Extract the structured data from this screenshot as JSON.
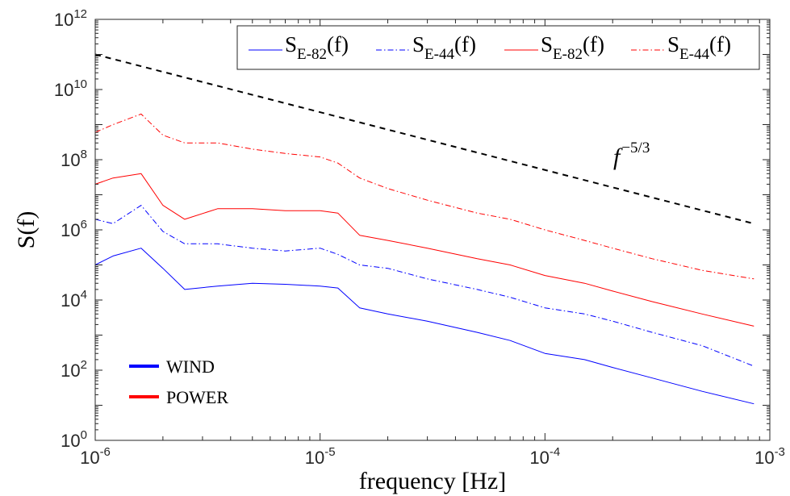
{
  "chart_data": {
    "type": "line",
    "xlabel": "frequency [Hz]",
    "ylabel": "S(f)",
    "xscale": "log",
    "yscale": "log",
    "xlim": [
      1e-06,
      0.001
    ],
    "ylim": [
      1,
      1000000000000.0
    ],
    "x_ticks": [
      {
        "base": "10",
        "exp": "-6"
      },
      {
        "base": "10",
        "exp": "-5"
      },
      {
        "base": "10",
        "exp": "-4"
      },
      {
        "base": "10",
        "exp": "-3"
      }
    ],
    "y_ticks": [
      {
        "base": "10",
        "exp": "0"
      },
      {
        "base": "10",
        "exp": "2"
      },
      {
        "base": "10",
        "exp": "4"
      },
      {
        "base": "10",
        "exp": "6"
      },
      {
        "base": "10",
        "exp": "8"
      },
      {
        "base": "10",
        "exp": "10"
      },
      {
        "base": "10",
        "exp": "12"
      }
    ],
    "grid": false,
    "legend_position": "top-right",
    "series": [
      {
        "name": "S",
        "subscript": "E-82",
        "suffix": "(f)",
        "color": "#0000ff",
        "dash": "solid",
        "x": [
          1e-06,
          1.2e-06,
          1.6e-06,
          2e-06,
          2.5e-06,
          3.5e-06,
          5e-06,
          7e-06,
          1e-05,
          1.2e-05,
          1.5e-05,
          2e-05,
          3e-05,
          5e-05,
          7e-05,
          0.0001,
          0.00015,
          0.0002,
          0.0003,
          0.0005,
          0.00085
        ],
        "y": [
          100000,
          180000,
          300000,
          80000,
          20000,
          25000,
          30000,
          28000,
          25000,
          22000,
          6000,
          4000,
          2500,
          1200,
          700,
          300,
          200,
          120,
          60,
          25,
          11
        ]
      },
      {
        "name": "S",
        "subscript": "E-44",
        "suffix": "(f)",
        "color": "#0000ff",
        "dash": "dashdot",
        "x": [
          1e-06,
          1.2e-06,
          1.6e-06,
          2e-06,
          2.5e-06,
          3.5e-06,
          5e-06,
          7e-06,
          1e-05,
          1.2e-05,
          1.5e-05,
          2e-05,
          3e-05,
          5e-05,
          7e-05,
          0.0001,
          0.00015,
          0.0002,
          0.0003,
          0.0005,
          0.00085
        ],
        "y": [
          2000000,
          1500000,
          5000000,
          900000,
          400000,
          400000,
          300000,
          250000,
          300000,
          200000,
          100000,
          80000,
          40000,
          20000,
          12000,
          6000,
          4000,
          2500,
          1200,
          500,
          130
        ]
      },
      {
        "name": "S",
        "subscript": "E-82",
        "suffix": "(f)",
        "color": "#ff0000",
        "dash": "solid",
        "x": [
          1e-06,
          1.2e-06,
          1.6e-06,
          2e-06,
          2.5e-06,
          3.5e-06,
          5e-06,
          7e-06,
          1e-05,
          1.2e-05,
          1.5e-05,
          2e-05,
          3e-05,
          5e-05,
          7e-05,
          0.0001,
          0.00015,
          0.0002,
          0.0003,
          0.0005,
          0.00085
        ],
        "y": [
          20000000,
          30000000,
          40000000,
          5000000,
          2000000,
          4000000,
          4000000,
          3500000,
          3500000,
          3000000,
          700000,
          500000,
          300000,
          150000,
          100000,
          50000,
          30000,
          18000,
          9000,
          4000,
          1800
        ]
      },
      {
        "name": "S",
        "subscript": "E-44",
        "suffix": "(f)",
        "color": "#ff0000",
        "dash": "dashdot",
        "x": [
          1e-06,
          1.2e-06,
          1.6e-06,
          2e-06,
          2.5e-06,
          3.5e-06,
          5e-06,
          7e-06,
          1e-05,
          1.2e-05,
          1.5e-05,
          2e-05,
          3e-05,
          5e-05,
          7e-05,
          0.0001,
          0.00015,
          0.0002,
          0.0003,
          0.0005,
          0.00085
        ],
        "y": [
          600000000,
          1000000000,
          2000000000,
          500000000,
          300000000,
          300000000,
          200000000,
          150000000,
          120000000,
          80000000,
          30000000,
          15000000,
          7000000,
          3000000,
          2000000,
          1000000,
          500000,
          300000,
          150000,
          70000,
          40000
        ]
      }
    ],
    "reference_line": {
      "label_base": "f",
      "label_exp": "−5/3",
      "color": "#000000",
      "dash": "dashed",
      "x": [
        1e-06,
        0.00085
      ],
      "y": [
        100000000000,
        1500000
      ]
    },
    "group_legend": [
      {
        "label": "WIND",
        "color": "#0000ff"
      },
      {
        "label": "POWER",
        "color": "#ff0000"
      }
    ]
  }
}
